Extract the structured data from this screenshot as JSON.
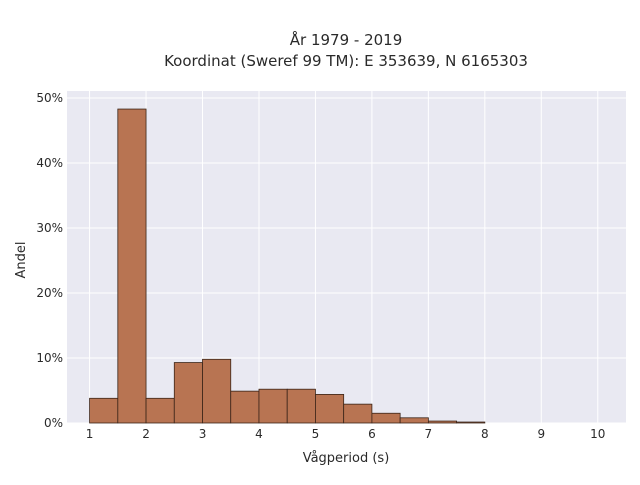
{
  "chart_data": {
    "type": "bar",
    "title_lines": [
      "År 1979 - 2019",
      "Koordinat (Sweref 99 TM): E 353639, N 6165303"
    ],
    "xlabel": "Vågperiod (s)",
    "ylabel": "Andel",
    "xlim": [
      0.6,
      10.5
    ],
    "ylim": [
      0,
      50
    ],
    "x_ticks": [
      1,
      2,
      3,
      4,
      5,
      6,
      7,
      8,
      9,
      10
    ],
    "x_tick_labels": [
      "1",
      "2",
      "3",
      "4",
      "5",
      "6",
      "7",
      "8",
      "9",
      "10"
    ],
    "y_ticks": [
      0,
      10,
      20,
      30,
      40,
      50
    ],
    "y_tick_labels": [
      "0%",
      "10%",
      "20%",
      "30%",
      "40%",
      "50%"
    ],
    "bin_edges": [
      1.0,
      1.5,
      2.0,
      2.5,
      3.0,
      3.5,
      4.0,
      4.5,
      5.0,
      5.5,
      6.0,
      6.5,
      7.0,
      7.5,
      8.0
    ],
    "values": [
      3.8,
      48.3,
      3.8,
      9.3,
      9.8,
      4.9,
      5.2,
      5.2,
      4.4,
      2.9,
      1.5,
      0.8,
      0.3,
      0.15
    ],
    "bar_color": "#b87452",
    "bar_edge_color": "#3a2418",
    "plot_background": "#e9e9f2",
    "grid": true,
    "grid_color": "#ffffff"
  }
}
